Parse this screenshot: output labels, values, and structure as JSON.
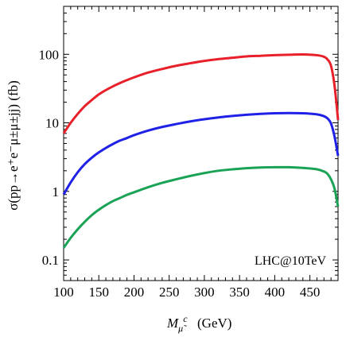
{
  "chart_data": {
    "type": "line",
    "title": "",
    "xlabel": "M",
    "xlabel_sub": "μ̃",
    "xlabel_sup": "c",
    "xlabel_units": "(GeV)",
    "ylabel": "σ(pp→e⁺e⁻μ±μ±jj)  (fb)",
    "yscale": "log",
    "xlim": [
      100,
      490
    ],
    "ylim": [
      0.05,
      500
    ],
    "x_ticks": [
      100,
      150,
      200,
      250,
      300,
      350,
      400,
      450
    ],
    "x_tick_labels": [
      "100",
      "150",
      "200",
      "250",
      "300",
      "350",
      "400",
      "450"
    ],
    "y_ticks": [
      0.1,
      1,
      10,
      100
    ],
    "y_tick_labels": [
      "0.1",
      "1",
      "10",
      "100"
    ],
    "grid": false,
    "annotation": "LHC@10TeV",
    "series": [
      {
        "color": "#e8202a",
        "x": [
          100,
          110,
          120,
          130,
          140,
          150,
          160,
          170,
          180,
          190,
          200,
          220,
          240,
          260,
          280,
          300,
          320,
          340,
          360,
          380,
          400,
          420,
          440,
          460,
          470,
          475,
          480,
          485,
          490
        ],
        "y": [
          7,
          10,
          13.5,
          17.5,
          21.5,
          26,
          30,
          34,
          38,
          42,
          46,
          54,
          61,
          68,
          74,
          80,
          85,
          89,
          93,
          95,
          97,
          98.5,
          99.5,
          97,
          92,
          84,
          68,
          35,
          11
        ]
      },
      {
        "color": "#1f22e6",
        "x": [
          100,
          110,
          120,
          130,
          140,
          150,
          160,
          170,
          180,
          190,
          200,
          220,
          240,
          260,
          280,
          300,
          320,
          340,
          360,
          380,
          400,
          420,
          440,
          460,
          470,
          475,
          480,
          485,
          490
        ],
        "y": [
          0.9,
          1.35,
          1.9,
          2.5,
          3.1,
          3.7,
          4.3,
          4.9,
          5.5,
          6.0,
          6.6,
          7.7,
          8.7,
          9.6,
          10.5,
          11.3,
          12,
          12.6,
          13.1,
          13.5,
          13.8,
          13.9,
          13.8,
          13.3,
          12.5,
          11.6,
          9.8,
          6.3,
          3.3
        ]
      },
      {
        "color": "#1aa356",
        "x": [
          100,
          110,
          120,
          130,
          140,
          150,
          160,
          170,
          180,
          190,
          200,
          220,
          240,
          260,
          280,
          300,
          320,
          340,
          360,
          380,
          400,
          420,
          440,
          460,
          470,
          475,
          480,
          485,
          490
        ],
        "y": [
          0.15,
          0.21,
          0.28,
          0.36,
          0.45,
          0.54,
          0.63,
          0.72,
          0.8,
          0.89,
          0.97,
          1.15,
          1.33,
          1.5,
          1.68,
          1.85,
          2.0,
          2.1,
          2.18,
          2.23,
          2.25,
          2.25,
          2.2,
          2.1,
          1.95,
          1.8,
          1.5,
          1.1,
          0.6
        ]
      }
    ]
  }
}
